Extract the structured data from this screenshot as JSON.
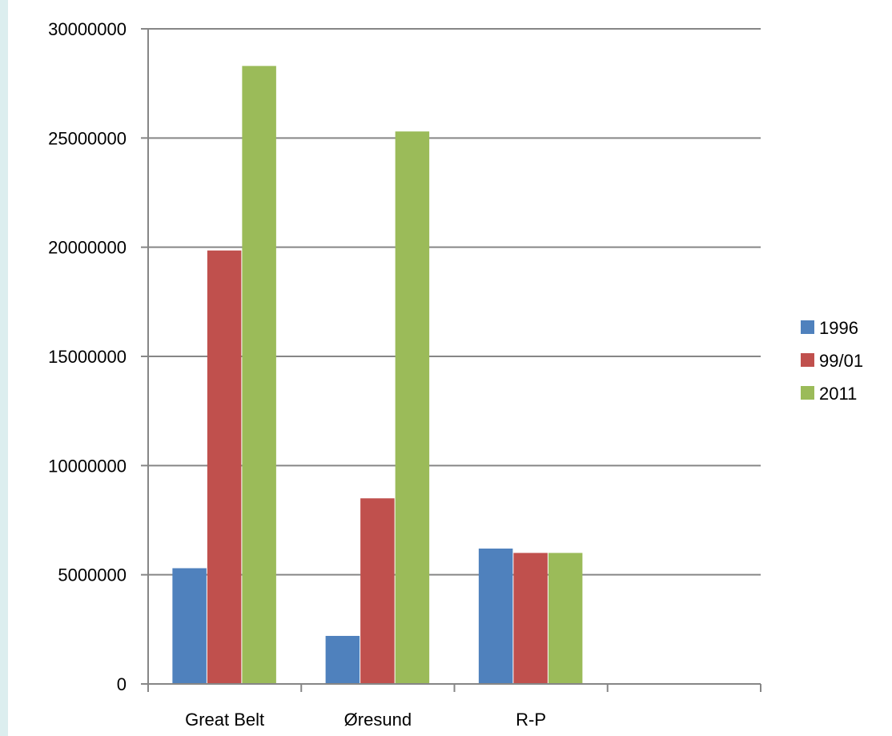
{
  "colors": {
    "frame": "#dceeef",
    "gridline": "#868686",
    "axis": "#868686",
    "series": [
      "#4f81bd",
      "#c0504d",
      "#9bbb59"
    ]
  },
  "chart_data": {
    "type": "bar",
    "title": "",
    "xlabel": "",
    "ylabel": "",
    "categories": [
      "Great Belt",
      "Øresund",
      "R-P",
      ""
    ],
    "series": [
      {
        "name": "1996",
        "values": [
          5300000,
          2200000,
          6200000,
          null
        ]
      },
      {
        "name": "99/01",
        "values": [
          19850000,
          8500000,
          6000000,
          null
        ]
      },
      {
        "name": "2011",
        "values": [
          28300000,
          25300000,
          6000000,
          null
        ]
      }
    ],
    "ylim": [
      0,
      30000000
    ],
    "yticks": [
      "0",
      "5000000",
      "10000000",
      "15000000",
      "20000000",
      "25000000",
      "30000000"
    ],
    "grid": true,
    "legend": "right"
  }
}
